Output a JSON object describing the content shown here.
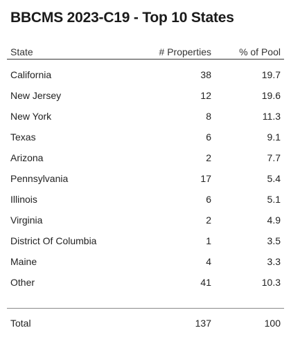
{
  "title": "BBCMS 2023-C19 - Top 10 States",
  "columns": {
    "state": "State",
    "properties": "# Properties",
    "pct_pool": "% of Pool"
  },
  "rows": [
    {
      "state": "California",
      "properties": "38",
      "pct": "19.7"
    },
    {
      "state": "New Jersey",
      "properties": "12",
      "pct": "19.6"
    },
    {
      "state": "New York",
      "properties": "8",
      "pct": "11.3"
    },
    {
      "state": "Texas",
      "properties": "6",
      "pct": "9.1"
    },
    {
      "state": "Arizona",
      "properties": "2",
      "pct": "7.7"
    },
    {
      "state": "Pennsylvania",
      "properties": "17",
      "pct": "5.4"
    },
    {
      "state": "Illinois",
      "properties": "6",
      "pct": "5.1"
    },
    {
      "state": "Virginia",
      "properties": "2",
      "pct": "4.9"
    },
    {
      "state": "District Of Columbia",
      "properties": "1",
      "pct": "3.5"
    },
    {
      "state": "Maine",
      "properties": "4",
      "pct": "3.3"
    },
    {
      "state": "Other",
      "properties": "41",
      "pct": "10.3"
    }
  ],
  "total": {
    "label": "Total",
    "properties": "137",
    "pct": "100"
  }
}
